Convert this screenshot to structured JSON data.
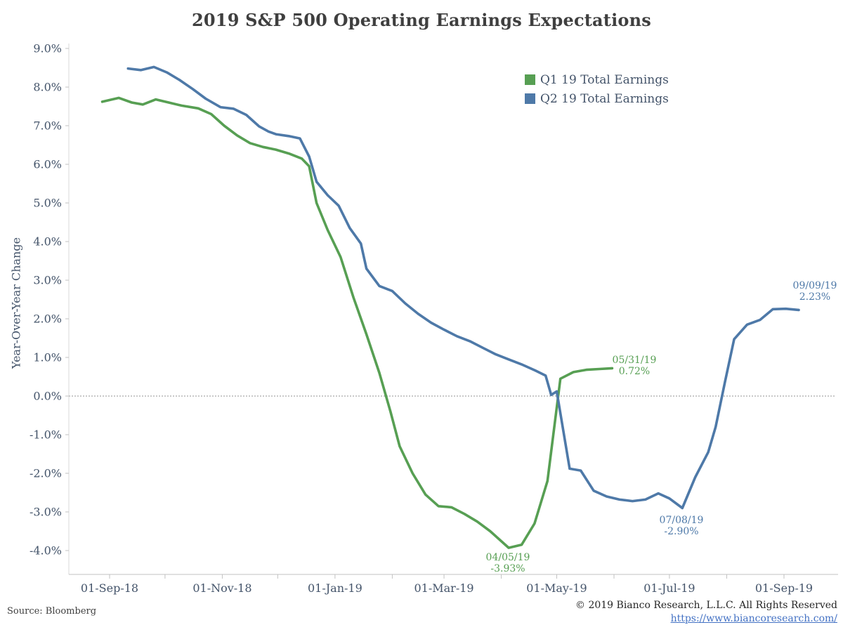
{
  "title": "2019 S&P 500 Operating Earnings Expectations",
  "y_axis_title": "Year-Over-Year Change",
  "legend": [
    {
      "label": "Q1 19 Total Earnings",
      "color": "#579f53"
    },
    {
      "label": "Q2 19 Total Earnings",
      "color": "#4e79a8"
    }
  ],
  "annotations": {
    "q1_end": {
      "line1": "05/31/19",
      "line2": "0.72%",
      "color": "#579f53"
    },
    "q1_min": {
      "line1": "04/05/19",
      "line2": "-3.93%",
      "color": "#579f53"
    },
    "q2_end": {
      "line1": "09/09/19",
      "line2": "2.23%",
      "color": "#4e79a8"
    },
    "q2_min": {
      "line1": "07/08/19",
      "line2": "-2.90%",
      "color": "#4e79a8"
    }
  },
  "footer": {
    "source": "Source: Bloomberg",
    "copyright": "© 2019 Bianco Research, L.L.C. All Rights Reserved",
    "link": "https://www.biancoresearch.com/"
  },
  "chart_data": {
    "type": "line",
    "title": "2019 S&P 500 Operating Earnings Expectations",
    "xlabel": "",
    "ylabel": "Year-Over-Year Change",
    "ylim": [
      -4.7,
      9.2
    ],
    "grid": false,
    "zero_line": true,
    "legend_position": "upper-right-inside",
    "x_tick_labels": [
      {
        "date": "2018-09-01",
        "label": "01-Sep-18"
      },
      {
        "date": "2018-11-01",
        "label": "01-Nov-18"
      },
      {
        "date": "2019-01-01",
        "label": "01-Jan-19"
      },
      {
        "date": "2019-03-01",
        "label": "01-Mar-19"
      },
      {
        "date": "2019-05-01",
        "label": "01-May-19"
      },
      {
        "date": "2019-07-01",
        "label": "01-Jul-19"
      },
      {
        "date": "2019-09-01",
        "label": "01-Sep-19"
      }
    ],
    "minor_tick_months": [
      "2018-09-01",
      "2018-10-01",
      "2018-11-01",
      "2018-12-01",
      "2019-01-01",
      "2019-02-01",
      "2019-03-01",
      "2019-04-01",
      "2019-05-01",
      "2019-06-01",
      "2019-07-01",
      "2019-08-01",
      "2019-09-01"
    ],
    "y_ticks": [
      {
        "v": 9,
        "label": "9.0%"
      },
      {
        "v": 8,
        "label": "8.0%"
      },
      {
        "v": 7,
        "label": "7.0%"
      },
      {
        "v": 6,
        "label": "6.0%"
      },
      {
        "v": 5,
        "label": "5.0%"
      },
      {
        "v": 4,
        "label": "4.0%"
      },
      {
        "v": 3,
        "label": "3.0%"
      },
      {
        "v": 2,
        "label": "2.0%"
      },
      {
        "v": 1,
        "label": "1.0%"
      },
      {
        "v": 0,
        "label": "0.0%"
      },
      {
        "v": -1,
        "label": "-1.0%"
      },
      {
        "v": -2,
        "label": "-2.0%"
      },
      {
        "v": -3,
        "label": "-3.0%"
      },
      {
        "v": -4,
        "label": "-4.0%"
      }
    ],
    "series": [
      {
        "name": "Q1 19 Total Earnings",
        "color": "#579f53",
        "points": [
          [
            "2018-08-28",
            7.62
          ],
          [
            "2018-09-06",
            7.72
          ],
          [
            "2018-09-13",
            7.6
          ],
          [
            "2018-09-19",
            7.55
          ],
          [
            "2018-09-26",
            7.68
          ],
          [
            "2018-10-03",
            7.6
          ],
          [
            "2018-10-10",
            7.52
          ],
          [
            "2018-10-19",
            7.45
          ],
          [
            "2018-10-26",
            7.3
          ],
          [
            "2018-11-02",
            7.0
          ],
          [
            "2018-11-09",
            6.75
          ],
          [
            "2018-11-16",
            6.55
          ],
          [
            "2018-11-23",
            6.45
          ],
          [
            "2018-11-30",
            6.38
          ],
          [
            "2018-12-07",
            6.28
          ],
          [
            "2018-12-14",
            6.15
          ],
          [
            "2018-12-18",
            5.95
          ],
          [
            "2018-12-22",
            5.0
          ],
          [
            "2018-12-28",
            4.3
          ],
          [
            "2019-01-04",
            3.6
          ],
          [
            "2019-01-11",
            2.55
          ],
          [
            "2019-01-18",
            1.6
          ],
          [
            "2019-01-25",
            0.6
          ],
          [
            "2019-01-31",
            -0.4
          ],
          [
            "2019-02-05",
            -1.3
          ],
          [
            "2019-02-12",
            -2.0
          ],
          [
            "2019-02-19",
            -2.55
          ],
          [
            "2019-02-26",
            -2.85
          ],
          [
            "2019-03-05",
            -2.88
          ],
          [
            "2019-03-12",
            -3.05
          ],
          [
            "2019-03-19",
            -3.25
          ],
          [
            "2019-03-26",
            -3.5
          ],
          [
            "2019-04-05",
            -3.93
          ],
          [
            "2019-04-12",
            -3.85
          ],
          [
            "2019-04-19",
            -3.3
          ],
          [
            "2019-04-26",
            -2.2
          ],
          [
            "2019-05-03",
            0.45
          ],
          [
            "2019-05-10",
            0.62
          ],
          [
            "2019-05-17",
            0.68
          ],
          [
            "2019-05-24",
            0.7
          ],
          [
            "2019-05-31",
            0.72
          ]
        ]
      },
      {
        "name": "Q2 19 Total Earnings",
        "color": "#4e79a8",
        "points": [
          [
            "2018-09-11",
            8.48
          ],
          [
            "2018-09-18",
            8.44
          ],
          [
            "2018-09-25",
            8.52
          ],
          [
            "2018-10-02",
            8.38
          ],
          [
            "2018-10-09",
            8.18
          ],
          [
            "2018-10-16",
            7.95
          ],
          [
            "2018-10-23",
            7.7
          ],
          [
            "2018-10-31",
            7.48
          ],
          [
            "2018-11-07",
            7.44
          ],
          [
            "2018-11-14",
            7.28
          ],
          [
            "2018-11-21",
            6.98
          ],
          [
            "2018-11-26",
            6.85
          ],
          [
            "2018-11-30",
            6.78
          ],
          [
            "2018-12-07",
            6.73
          ],
          [
            "2018-12-13",
            6.67
          ],
          [
            "2018-12-18",
            6.2
          ],
          [
            "2018-12-22",
            5.55
          ],
          [
            "2018-12-28",
            5.2
          ],
          [
            "2019-01-03",
            4.93
          ],
          [
            "2019-01-09",
            4.35
          ],
          [
            "2019-01-15",
            3.95
          ],
          [
            "2019-01-18",
            3.3
          ],
          [
            "2019-01-25",
            2.85
          ],
          [
            "2019-02-01",
            2.72
          ],
          [
            "2019-02-08",
            2.4
          ],
          [
            "2019-02-15",
            2.13
          ],
          [
            "2019-02-22",
            1.9
          ],
          [
            "2019-03-01",
            1.72
          ],
          [
            "2019-03-08",
            1.55
          ],
          [
            "2019-03-15",
            1.42
          ],
          [
            "2019-03-22",
            1.25
          ],
          [
            "2019-03-29",
            1.08
          ],
          [
            "2019-04-05",
            0.95
          ],
          [
            "2019-04-12",
            0.82
          ],
          [
            "2019-04-19",
            0.67
          ],
          [
            "2019-04-25",
            0.53
          ],
          [
            "2019-04-28",
            0.03
          ],
          [
            "2019-05-01",
            0.12
          ],
          [
            "2019-05-08",
            -1.88
          ],
          [
            "2019-05-14",
            -1.93
          ],
          [
            "2019-05-21",
            -2.45
          ],
          [
            "2019-05-28",
            -2.6
          ],
          [
            "2019-06-04",
            -2.68
          ],
          [
            "2019-06-11",
            -2.72
          ],
          [
            "2019-06-18",
            -2.68
          ],
          [
            "2019-06-25",
            -2.52
          ],
          [
            "2019-07-01",
            -2.65
          ],
          [
            "2019-07-08",
            -2.9
          ],
          [
            "2019-07-15",
            -2.1
          ],
          [
            "2019-07-22",
            -1.45
          ],
          [
            "2019-07-26",
            -0.8
          ],
          [
            "2019-07-31",
            0.35
          ],
          [
            "2019-08-05",
            1.47
          ],
          [
            "2019-08-12",
            1.85
          ],
          [
            "2019-08-19",
            1.97
          ],
          [
            "2019-08-26",
            2.25
          ],
          [
            "2019-09-02",
            2.26
          ],
          [
            "2019-09-09",
            2.23
          ]
        ]
      }
    ]
  }
}
